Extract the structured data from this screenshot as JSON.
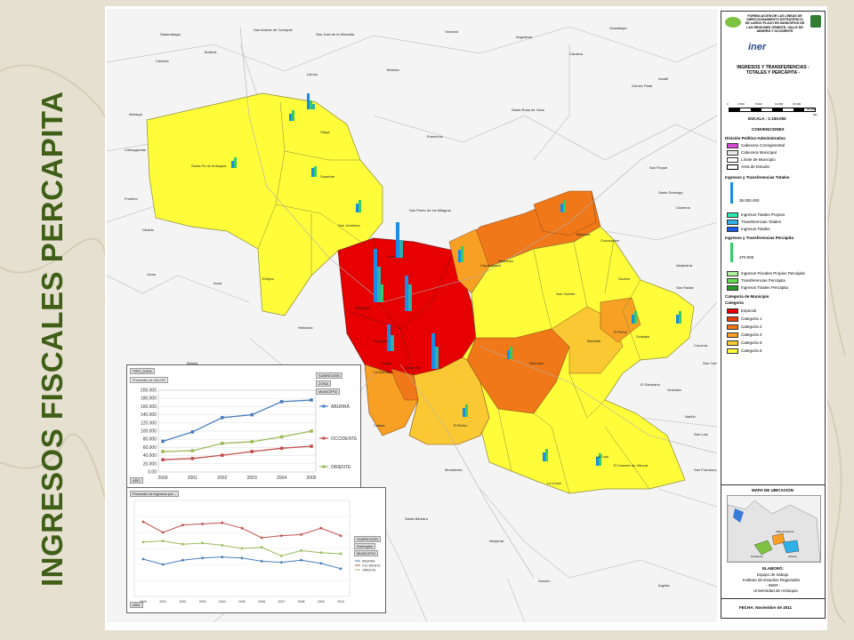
{
  "title": "INGRESOS FISCALES PERCAPITA",
  "colors": {
    "title": "#3f5f17",
    "especial": "#e60000",
    "cat1": "#e8400c",
    "cat2": "#f07818",
    "cat3": "#f7a024",
    "cat5": "#f9c833",
    "cat6": "#fffd3a"
  },
  "map": {
    "place_labels": [
      "Sabanalarga",
      "San Andrés de Cuerquia",
      "San José de la Montaña",
      "Yarumal",
      "Angostura",
      "Guadalupe",
      "Buriticá",
      "Caicedo",
      "Liborio",
      "Olaya",
      "Sopetrán",
      "Belmira",
      "Santa Fe de Antioquia",
      "San Jerónimo",
      "Ebéjico",
      "Entrerríos",
      "Santa Rosa de Osos",
      "Carolina",
      "Gómez Plata",
      "Amalfi",
      "San Roque",
      "Santo Domingo",
      "Cisneros",
      "San Pedro de los Milagros",
      "Bello",
      "Medellín",
      "Barbosa",
      "Girardota",
      "Copacabana",
      "Concepción",
      "Alejandría",
      "Guarne",
      "San Vicente",
      "El Peñol",
      "Guatapé",
      "San Rafael",
      "Rionegro",
      "Marinilla",
      "El Santuario",
      "Envigado",
      "Itagüí",
      "Sabaneta",
      "La Estrella",
      "Caldas",
      "El Retiro",
      "La Ceja",
      "La Unión",
      "El Carmen de Viboral",
      "Granada",
      "San Luis",
      "San Francisco",
      "Montebello",
      "Santa Bárbara",
      "Abejorral",
      "Sonsón",
      "Argelia",
      "La Pintada",
      "Armenia",
      "Heliconia",
      "Anzá",
      "Betulia",
      "Urrao",
      "Abriaquí",
      "Frontino",
      "Cañasgordas",
      "Giraldo",
      "San Carlos",
      "Cocorná",
      "Nariño",
      "Fredonia"
    ]
  },
  "legend": {
    "header_text": "FORMULACIÓN DE LAS LÍNEAS DE DIRECCIONAMIENTO ESTRATÉGICO DE LARGO PLAZO EN MUNICIPIOS DE LAS REGIONES ORIENTE, VALLE DE ABURRÁ Y OCCIDENTE",
    "logo_iner": "iner",
    "map_title": "INGRESOS Y TRANSFERENCIAS - TOTALES Y PERCÁPITA -",
    "scale_ticks": [
      "0",
      "2.500",
      "5.000",
      "10.000",
      "15.000",
      "20.000"
    ],
    "scale_unit": "Mts",
    "scale": "ESCALA : 1:150.000",
    "convenciones": "CONVENCIONES",
    "div_title": "División Político-Administrativa",
    "div_items": [
      "Cabecera Corregimental",
      "Cabecera Municipal",
      "Límite de Municipio",
      "Área de Estudio"
    ],
    "ingresos_title": "Ingresos y Transferencias Totales",
    "ingresos_value": "36.000.000",
    "ingresos_items": [
      "Ingresos Totales Propios",
      "Transferencias Totales",
      "Ingresos Totales"
    ],
    "percapita_title": "Ingresos y Transferencias Percápita",
    "percapita_value": "370.000",
    "percapita_items": [
      "Ingresos Fiscales Propios Percápita",
      "Transferencias Percápita",
      "Ingresos Totales Percápita"
    ],
    "categoria_title": "Categoría de Municipio",
    "categoria_sub": "Categoría",
    "categorias": [
      "Especial",
      "Categoría 1",
      "Categoría 2",
      "Categoría 3",
      "Categoría 5",
      "Categoría 6"
    ],
    "location_title": "MAPA DE UBICACIÓN",
    "loc_labels": [
      "Valle de Aburrá",
      "Occidente",
      "Oriente"
    ],
    "elaboro_title": "ELABORÓ:",
    "elaboro_lines": [
      "Equipo de trabajo",
      "Instituto de Estudios Regionales",
      "- INER -",
      "Universidad de Antioquia"
    ],
    "fecha": "FECHA: Noviembre de 2011"
  },
  "chart_top": {
    "filter_label": "TIPO_DATA",
    "measure_label": "Promedio de VALOR",
    "right_pills": [
      "SUBREGIÓN",
      "ZONA",
      "MUNICIPIO"
    ],
    "year_pill": "AÑO",
    "yticks": [
      "0.00",
      "20.000",
      "40.000",
      "60.000",
      "80.000",
      "100.000",
      "120.000",
      "140.000",
      "160.000",
      "180.000",
      "200.000"
    ]
  },
  "chart_bottom": {
    "title_pill": "Promedio de ingresos por...",
    "year_pill": "AÑO",
    "pills": [
      "SUBREGIÓN",
      "Subregión",
      "MUNICIPIO"
    ]
  },
  "chart_data": [
    {
      "type": "line",
      "title": "",
      "x": [
        "2000",
        "2001",
        "2002",
        "2003",
        "2004",
        "2005"
      ],
      "ylim": [
        0,
        200000
      ],
      "series": [
        {
          "name": "ABURRÁ",
          "color": "#4a7ebb",
          "values": [
            75000,
            98000,
            133000,
            140000,
            172000,
            176000
          ]
        },
        {
          "name": "OCCIDENTE",
          "color": "#c0504d",
          "values": [
            30000,
            33000,
            41000,
            50000,
            58000,
            63000
          ]
        },
        {
          "name": "ORIENTE",
          "color": "#9bbb59",
          "values": [
            50000,
            52000,
            70000,
            74000,
            86000,
            100000
          ]
        }
      ]
    },
    {
      "type": "line",
      "title": "",
      "x": [
        "2000",
        "2001",
        "2002",
        "2003",
        "2004",
        "2005",
        "2006",
        "2007",
        "2008",
        "2009",
        "2010"
      ],
      "series": [
        {
          "name": "ABURRÁ",
          "color": "#4a7ebb",
          "values": [
            35,
            30,
            34,
            36,
            37,
            36,
            33,
            32,
            34,
            31,
            26
          ]
        },
        {
          "name": "OCCIDENTE",
          "color": "#c0504d",
          "values": [
            70,
            60,
            67,
            68,
            69,
            64,
            55,
            57,
            58,
            64,
            57
          ]
        },
        {
          "name": "ORIENTE",
          "color": "#9bbb59",
          "values": [
            51,
            52,
            49,
            50,
            48,
            45,
            46,
            38,
            43,
            41,
            40
          ]
        }
      ]
    }
  ]
}
